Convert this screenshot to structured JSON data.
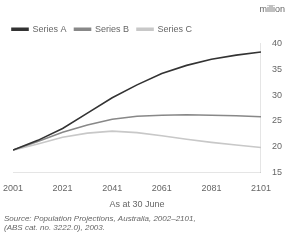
{
  "chart_data": {
    "type": "line",
    "x": [
      2001,
      2011,
      2021,
      2031,
      2041,
      2051,
      2061,
      2071,
      2081,
      2091,
      2101
    ],
    "series": [
      {
        "name": "Series A",
        "color": "#333333",
        "values": [
          19.3,
          21.2,
          23.5,
          26.5,
          29.5,
          32.0,
          34.2,
          35.8,
          37.0,
          37.8,
          38.4
        ]
      },
      {
        "name": "Series B",
        "color": "#888888",
        "values": [
          19.3,
          21.0,
          22.8,
          24.2,
          25.3,
          25.9,
          26.1,
          26.2,
          26.1,
          26.0,
          25.8
        ]
      },
      {
        "name": "Series C",
        "color": "#c8c8c8",
        "values": [
          19.3,
          20.5,
          21.8,
          22.6,
          23.0,
          22.7,
          22.1,
          21.4,
          20.8,
          20.3,
          19.8
        ]
      }
    ],
    "xlabel": "As at 30 June",
    "ylabel": "million",
    "source": "Source: Population Projections, Australia, 2002–2101,\n(ABS cat. no. 3222.0), 2003.",
    "xlim": [
      2001,
      2101
    ],
    "ylim": [
      15,
      40
    ],
    "xticks": [
      2001,
      2021,
      2041,
      2061,
      2081,
      2101
    ],
    "yticks": [
      15,
      20,
      25,
      30,
      35,
      40
    ],
    "grid": false,
    "legend": "upper left"
  }
}
